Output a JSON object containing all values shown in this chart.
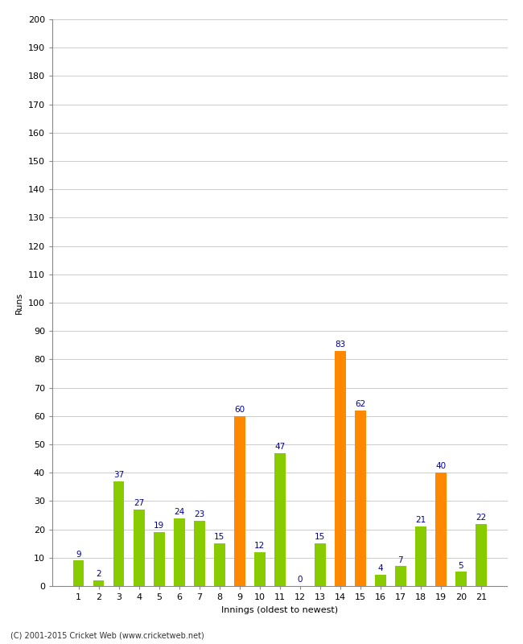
{
  "title": "",
  "xlabel": "Innings (oldest to newest)",
  "ylabel": "Runs",
  "innings": [
    1,
    2,
    3,
    4,
    5,
    6,
    7,
    8,
    9,
    10,
    11,
    12,
    13,
    14,
    15,
    16,
    17,
    18,
    19,
    20,
    21
  ],
  "values": [
    9,
    2,
    37,
    27,
    19,
    24,
    23,
    15,
    60,
    12,
    47,
    0,
    15,
    83,
    62,
    4,
    7,
    21,
    40,
    5,
    22
  ],
  "bar_colors": [
    "#88cc00",
    "#88cc00",
    "#88cc00",
    "#88cc00",
    "#88cc00",
    "#88cc00",
    "#88cc00",
    "#88cc00",
    "#ff8800",
    "#88cc00",
    "#88cc00",
    "#88cc00",
    "#88cc00",
    "#ff8800",
    "#ff8800",
    "#88cc00",
    "#88cc00",
    "#88cc00",
    "#ff8800",
    "#88cc00",
    "#88cc00"
  ],
  "label_color": "#000099",
  "ylim": [
    0,
    200
  ],
  "yticks": [
    0,
    10,
    20,
    30,
    40,
    50,
    60,
    70,
    80,
    90,
    100,
    110,
    120,
    130,
    140,
    150,
    160,
    170,
    180,
    190,
    200
  ],
  "bg_color": "#ffffff",
  "grid_color": "#cccccc",
  "footer": "(C) 2001-2015 Cricket Web (www.cricketweb.net)",
  "label_fontsize": 7.5,
  "tick_fontsize": 8,
  "axis_label_fontsize": 8,
  "bar_width": 0.55
}
